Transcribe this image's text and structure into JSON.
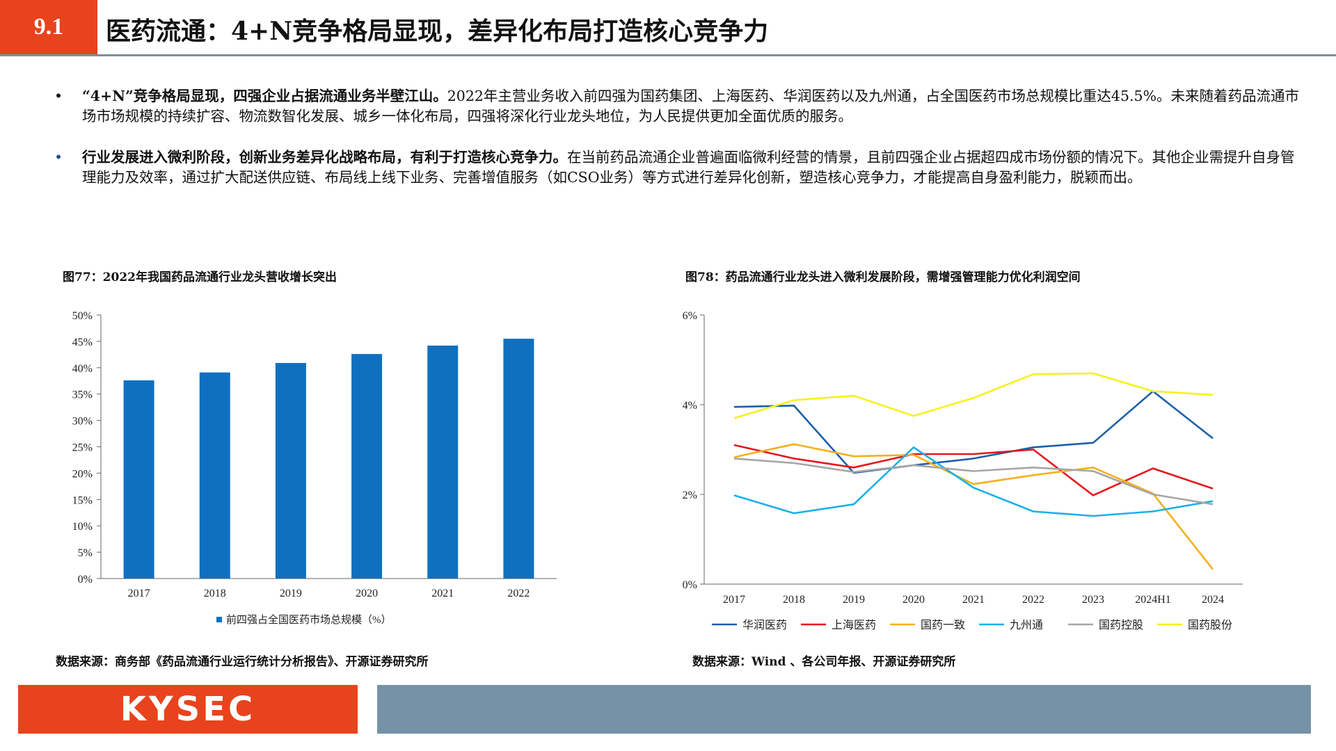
{
  "header": {
    "section_number": "9.1",
    "title": "医药流通：4+N竞争格局显现，差异化布局打造核心竞争力"
  },
  "bullets": [
    {
      "marker": "•",
      "bold": "“4+N”竞争格局显现，四强企业占据流通业务半壁江山。",
      "text": "2022年主营业务收入前四强为国药集团、上海医药、华润医药以及九州通，占全国医药市场总规模比重达45.5%。未来随着药品流通市场市场规模的持续扩容、物流数智化发展、城乡一体化布局，四强将深化行业龙头地位，为人民提供更加全面优质的服务。"
    },
    {
      "marker": "•",
      "bold": "行业发展进入微利阶段，创新业务差异化战略布局，有利于打造核心竞争力。",
      "text": "在当前药品流通企业普遍面临微利经营的情景，且前四强企业占据超四成市场份额的情况下。其他企业需提升自身管理能力及效率，通过扩大配送供应链、布局线上线下业务、完善增值服务（如CSO业务）等方式进行差异化创新，塑造核心竞争力，才能提高自身盈利能力，脱颖而出。"
    }
  ],
  "fig77": {
    "title": "图77：2022年我国药品流通行业龙头营收增长突出",
    "source": "数据来源：商务部《药品流通行业运行统计分析报告》、开源证券研究所"
  },
  "fig78": {
    "title": "图78：药品流通行业龙头进入微利发展阶段，需增强管理能力优化利润空间",
    "source": "数据来源：Wind 、各公司年报、开源证券研究所"
  },
  "chart_data": [
    {
      "type": "bar",
      "categories": [
        "2017",
        "2018",
        "2019",
        "2020",
        "2021",
        "2022"
      ],
      "series": [
        {
          "name": "前四强占全国医药市场总规模（%）",
          "values": [
            37.6,
            39.1,
            40.9,
            42.6,
            44.2,
            45.5
          ],
          "color": "#1070c0"
        }
      ],
      "ylim": [
        0,
        50
      ],
      "yticks": [
        0,
        5,
        10,
        15,
        20,
        25,
        30,
        35,
        40,
        45,
        50
      ],
      "ytick_labels": [
        "0%",
        "5%",
        "10%",
        "15%",
        "20%",
        "25%",
        "30%",
        "35%",
        "40%",
        "45%",
        "50%"
      ],
      "legend": "bottom",
      "grid": false
    },
    {
      "type": "line",
      "categories": [
        "2017",
        "2018",
        "2019",
        "2020",
        "2021",
        "2022",
        "2023",
        "2024H1",
        "2024"
      ],
      "series": [
        {
          "name": "华润医药",
          "color": "#1b5fa8",
          "values": [
            3.95,
            3.98,
            2.48,
            2.65,
            2.8,
            3.05,
            3.15,
            4.3,
            3.25
          ]
        },
        {
          "name": "上海医药",
          "color": "#e8141c",
          "values": [
            3.1,
            2.8,
            2.6,
            2.9,
            2.9,
            3.0,
            1.98,
            2.58,
            2.13
          ]
        },
        {
          "name": "国药一致",
          "color": "#f5b01c",
          "values": [
            2.83,
            3.12,
            2.85,
            2.88,
            2.23,
            2.43,
            2.6,
            2.02,
            0.33
          ]
        },
        {
          "name": "九州通",
          "color": "#1ab0e8",
          "values": [
            1.98,
            1.58,
            1.78,
            3.05,
            2.15,
            1.62,
            1.52,
            1.62,
            1.85
          ]
        },
        {
          "name": "国药控股",
          "color": "#a6a6a6",
          "values": [
            2.8,
            2.7,
            2.5,
            2.65,
            2.52,
            2.6,
            2.52,
            2.0,
            1.78
          ]
        },
        {
          "name": "国药股份",
          "color": "#f7f01c",
          "values": [
            3.7,
            4.1,
            4.2,
            3.75,
            4.15,
            4.68,
            4.7,
            4.3,
            4.22
          ]
        }
      ],
      "ylim": [
        0,
        6
      ],
      "yticks": [
        0,
        2,
        4,
        6
      ],
      "ytick_labels": [
        "0%",
        "2%",
        "4%",
        "6%"
      ],
      "legend": "bottom",
      "grid": false
    }
  ],
  "footer": {
    "logo": "KYSEC"
  }
}
